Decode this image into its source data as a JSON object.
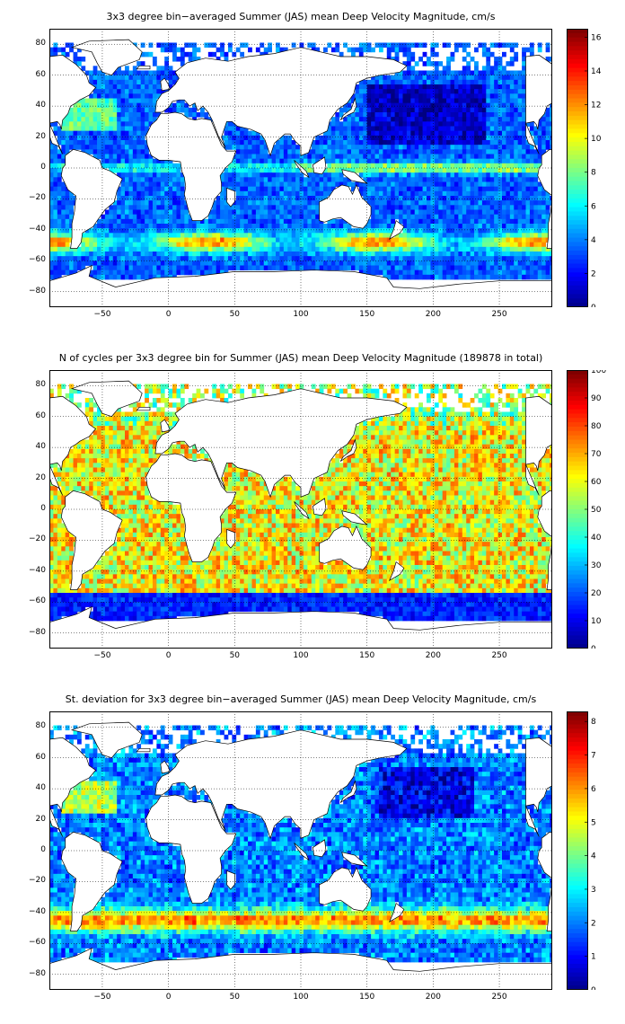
{
  "colors": {
    "map_low": "#00008f",
    "map_high": "#800000",
    "land_outline": "#000000",
    "grid": "#000000"
  },
  "panels": [
    {
      "title": "3x3 degree bin−averaged Summer (JAS) mean Deep Velocity Magnitude, cm/s",
      "y_ticks": [
        "80",
        "60",
        "40",
        "20",
        "0",
        "−20",
        "−40",
        "−60",
        "−80"
      ],
      "x_ticks": [
        "−50",
        "0",
        "50",
        "100",
        "150",
        "200",
        "250"
      ],
      "colorbar": {
        "min": 0,
        "max": 16.5,
        "ticks": [
          "16",
          "14",
          "12",
          "10",
          "8",
          "6",
          "4",
          "2",
          "0"
        ]
      }
    },
    {
      "title": "N of cycles per 3x3 degree bin for Summer (JAS) mean Deep Velocity Magnitude (189878 in total)",
      "y_ticks": [
        "80",
        "60",
        "40",
        "20",
        "0",
        "−20",
        "−40",
        "−60",
        "−80"
      ],
      "x_ticks": [
        "−50",
        "0",
        "50",
        "100",
        "150",
        "200",
        "250"
      ],
      "colorbar": {
        "min": 0,
        "max": 100,
        "ticks": [
          "100",
          "90",
          "80",
          "70",
          "60",
          "50",
          "40",
          "30",
          "20",
          "10",
          "0"
        ]
      }
    },
    {
      "title": "St. deviation for 3x3 degree bin−averaged Summer (JAS) mean Deep Velocity Magnitude, cm/s",
      "y_ticks": [
        "80",
        "60",
        "40",
        "20",
        "0",
        "−20",
        "−40",
        "−60",
        "−80"
      ],
      "x_ticks": [
        "−50",
        "0",
        "50",
        "100",
        "150",
        "200",
        "250"
      ],
      "colorbar": {
        "min": 0,
        "max": 8.3,
        "ticks": [
          "8",
          "7",
          "6",
          "5",
          "4",
          "3",
          "2",
          "1",
          "0"
        ]
      }
    }
  ]
}
